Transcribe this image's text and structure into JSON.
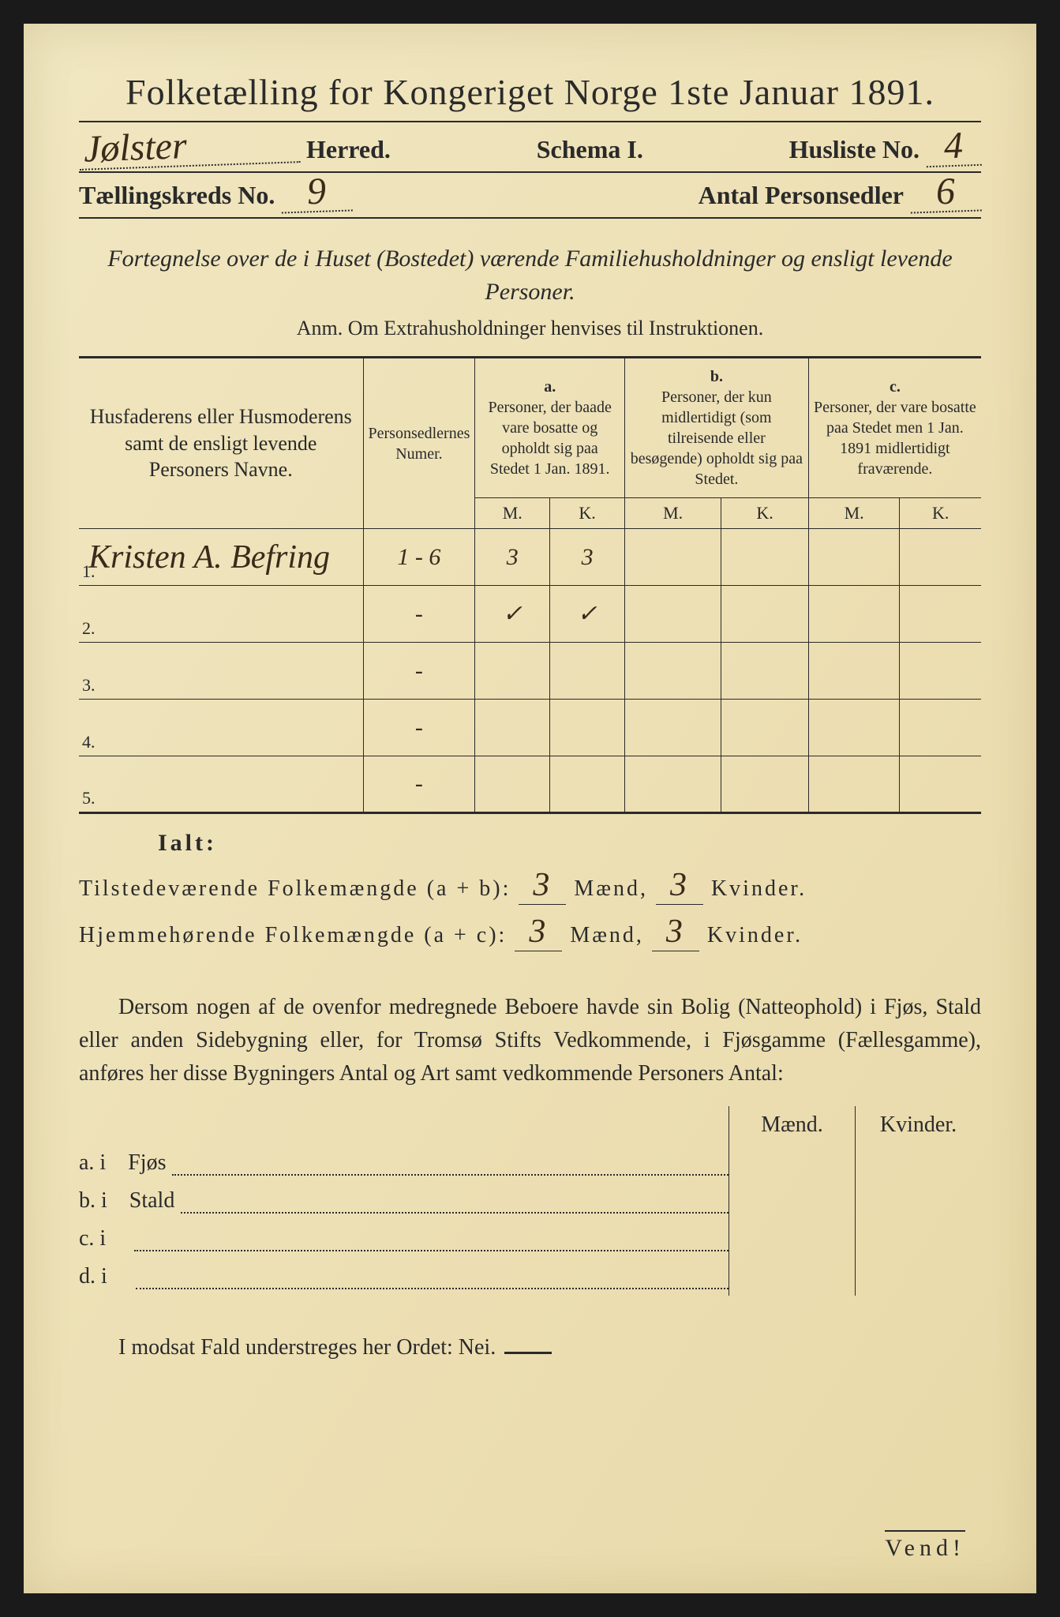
{
  "doc": {
    "title": "Folketælling for Kongeriget Norge 1ste Januar 1891.",
    "herred_value": "Jølster",
    "herred_label": "Herred.",
    "schema_label": "Schema",
    "schema_num": "I.",
    "husliste_label": "Husliste No.",
    "husliste_value": "4",
    "taellingskreds_label": "Tællingskreds No.",
    "taellingskreds_value": "9",
    "antal_label": "Antal Personsedler",
    "antal_value": "6",
    "subtitle": "Fortegnelse over de i Huset (Bostedet) værende Familiehusholdninger og ensligt levende Personer.",
    "anm": "Anm. Om Extrahusholdninger henvises til Instruktionen."
  },
  "table": {
    "col1_header": "Husfaderens eller Husmoderens samt de ensligt levende Personers Navne.",
    "col2_header": "Personsedlernes Numer.",
    "col_a_label": "a.",
    "col_a_header": "Personer, der baade vare bosatte og opholdt sig paa Stedet 1 Jan. 1891.",
    "col_b_label": "b.",
    "col_b_header": "Personer, der kun midlertidigt (som tilreisende eller besøgende) opholdt sig paa Stedet.",
    "col_c_label": "c.",
    "col_c_header": "Personer, der vare bosatte paa Stedet men 1 Jan. 1891 midlertidigt fraværende.",
    "m_label": "M.",
    "k_label": "K.",
    "rows": [
      {
        "num": "1.",
        "name": "Kristen A. Befring",
        "sedler": "1 - 6",
        "a_m": "3",
        "a_k": "3",
        "b_m": "",
        "b_k": "",
        "c_m": "",
        "c_k": ""
      },
      {
        "num": "2.",
        "name": "",
        "sedler": "-",
        "a_m": "✓",
        "a_k": "✓",
        "b_m": "",
        "b_k": "",
        "c_m": "",
        "c_k": ""
      },
      {
        "num": "3.",
        "name": "",
        "sedler": "-",
        "a_m": "",
        "a_k": "",
        "b_m": "",
        "b_k": "",
        "c_m": "",
        "c_k": ""
      },
      {
        "num": "4.",
        "name": "",
        "sedler": "-",
        "a_m": "",
        "a_k": "",
        "b_m": "",
        "b_k": "",
        "c_m": "",
        "c_k": ""
      },
      {
        "num": "5.",
        "name": "",
        "sedler": "-",
        "a_m": "",
        "a_k": "",
        "b_m": "",
        "b_k": "",
        "c_m": "",
        "c_k": ""
      }
    ]
  },
  "totals": {
    "ialt_label": "Ialt:",
    "line1_label": "Tilstedeværende Folkemængde (a + b):",
    "line2_label": "Hjemmehørende Folkemængde (a + c):",
    "maend_label": "Mænd,",
    "kvinder_label": "Kvinder.",
    "line1_m": "3",
    "line1_k": "3",
    "line2_m": "3",
    "line2_k": "3"
  },
  "para": {
    "text": "Dersom nogen af de ovenfor medregnede Beboere havde sin Bolig (Natteophold) i Fjøs, Stald eller anden Sidebygning eller, for Tromsø Stifts Vedkommende, i Fjøsgamme (Fællesgamme), anføres her disse Bygningers Antal og Art samt vedkommende Personers Antal:"
  },
  "bottom": {
    "maend_hdr": "Mænd.",
    "kvinder_hdr": "Kvinder.",
    "rows": [
      {
        "label": "a. i",
        "type": "Fjøs"
      },
      {
        "label": "b. i",
        "type": "Stald"
      },
      {
        "label": "c. i",
        "type": ""
      },
      {
        "label": "d. i",
        "type": ""
      }
    ]
  },
  "footer": {
    "text": "I modsat Fald understreges her Ordet: Nei.",
    "vend": "Vend!"
  },
  "style": {
    "paper_color": "#ede0b5",
    "ink_color": "#2a2a2a",
    "handwriting_color": "#3a2a1a",
    "title_fontsize": 46,
    "body_fontsize": 28,
    "table_fontsize": 22
  }
}
